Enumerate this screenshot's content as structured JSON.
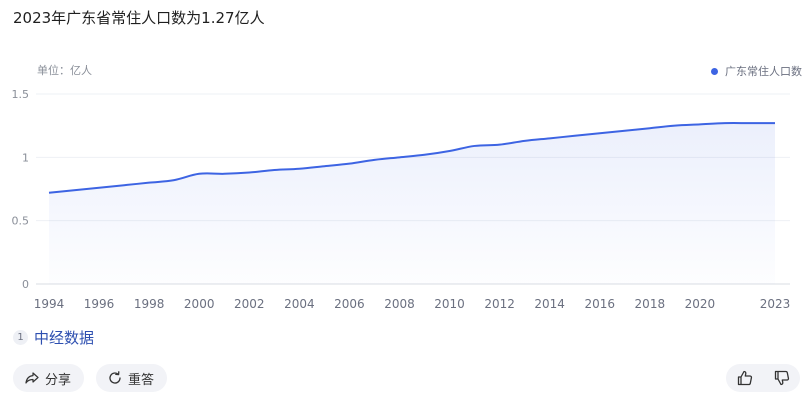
{
  "headline": "2023年广东省常住人口数为1.27亿人",
  "chart_data": {
    "type": "area",
    "title": "",
    "unit_label": "单位：亿人",
    "x": [
      1994,
      1995,
      1996,
      1997,
      1998,
      1999,
      2000,
      2001,
      2002,
      2003,
      2004,
      2005,
      2006,
      2007,
      2008,
      2009,
      2010,
      2011,
      2012,
      2013,
      2014,
      2015,
      2016,
      2017,
      2018,
      2019,
      2020,
      2021,
      2022,
      2023
    ],
    "x_tick_labels": [
      "1994",
      "1996",
      "1998",
      "2000",
      "2002",
      "2004",
      "2006",
      "2008",
      "2010",
      "2012",
      "2014",
      "2016",
      "2018",
      "2020",
      "2023"
    ],
    "series": [
      {
        "name": "广东常住人口数",
        "color": "#3d64e3",
        "values": [
          0.72,
          0.74,
          0.76,
          0.78,
          0.8,
          0.82,
          0.87,
          0.87,
          0.88,
          0.9,
          0.91,
          0.93,
          0.95,
          0.98,
          1.0,
          1.02,
          1.05,
          1.09,
          1.1,
          1.13,
          1.15,
          1.17,
          1.19,
          1.21,
          1.23,
          1.25,
          1.26,
          1.27,
          1.27,
          1.27
        ]
      }
    ],
    "ylim": [
      0,
      1.5
    ],
    "y_ticks": [
      "0",
      "0.5",
      "1",
      "1.5"
    ],
    "legend_position": "top-right",
    "grid": true
  },
  "source": {
    "index": "1",
    "label": "中经数据"
  },
  "actions": {
    "share_label": "分享",
    "regenerate_label": "重答"
  }
}
